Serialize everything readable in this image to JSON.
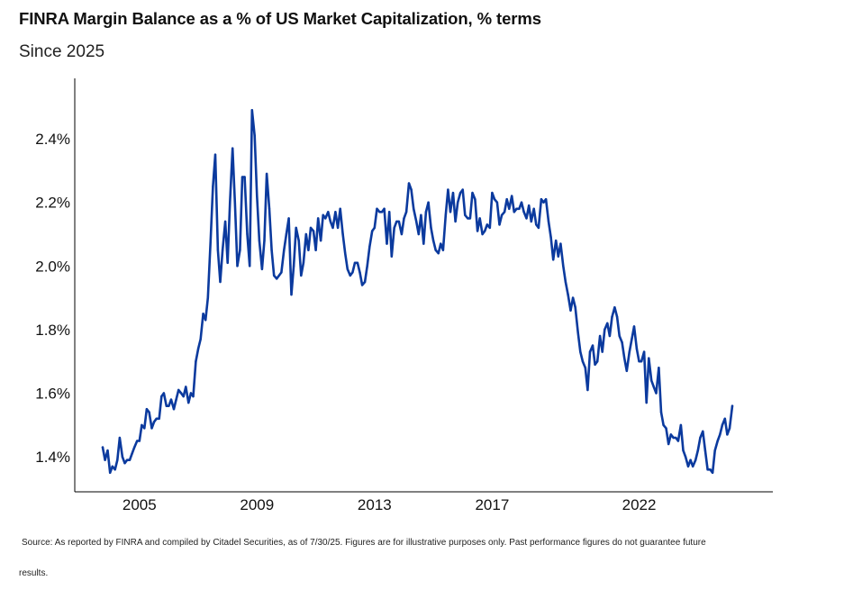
{
  "header": {
    "title": "FINRA Margin Balance as a % of US Market Capitalization, % terms",
    "subtitle": "Since 2025"
  },
  "footer": {
    "source_line1": "Source: As reported by FINRA and compiled by Citadel Securities, as of 7/30/25. Figures are for illustrative purposes only. Past performance figures do not guarantee future",
    "source_line2": "results."
  },
  "colors": {
    "line": "#0b3a9e",
    "axis": "#000000",
    "text": "#111111"
  },
  "chart_data": {
    "type": "line",
    "title": "FINRA Margin Balance as a % of US Market Capitalization, % terms",
    "subtitle": "Since 2025",
    "xlabel": "",
    "ylabel": "",
    "xlim": [
      2002.8,
      2026.55
    ],
    "ylim": [
      1.29,
      2.59
    ],
    "grid": false,
    "legend": "none",
    "x_ticks": [
      2005,
      2009,
      2013,
      2017,
      2022
    ],
    "x_tick_labels": [
      "2005",
      "2009",
      "2013",
      "2017",
      "2022"
    ],
    "y_ticks": [
      1.4,
      1.6,
      1.8,
      2.0,
      2.2,
      2.4
    ],
    "y_tick_labels": [
      "1.4%",
      "1.6%",
      "1.8%",
      "2.0%",
      "2.2%",
      "2.4%"
    ],
    "series": [
      {
        "name": "",
        "color": "#0b3a9e",
        "points": [
          [
            2003.75,
            1.43
          ],
          [
            2003.83,
            1.39
          ],
          [
            2003.92,
            1.42
          ],
          [
            2004.0,
            1.35
          ],
          [
            2004.08,
            1.37
          ],
          [
            2004.17,
            1.36
          ],
          [
            2004.25,
            1.39
          ],
          [
            2004.33,
            1.46
          ],
          [
            2004.42,
            1.4
          ],
          [
            2004.5,
            1.38
          ],
          [
            2004.58,
            1.39
          ],
          [
            2004.67,
            1.39
          ],
          [
            2004.75,
            1.41
          ],
          [
            2004.83,
            1.43
          ],
          [
            2004.92,
            1.45
          ],
          [
            2005.0,
            1.45
          ],
          [
            2005.08,
            1.5
          ],
          [
            2005.17,
            1.49
          ],
          [
            2005.25,
            1.55
          ],
          [
            2005.33,
            1.54
          ],
          [
            2005.42,
            1.49
          ],
          [
            2005.5,
            1.51
          ],
          [
            2005.58,
            1.52
          ],
          [
            2005.67,
            1.52
          ],
          [
            2005.75,
            1.59
          ],
          [
            2005.83,
            1.6
          ],
          [
            2005.92,
            1.56
          ],
          [
            2006.0,
            1.56
          ],
          [
            2006.08,
            1.58
          ],
          [
            2006.17,
            1.55
          ],
          [
            2006.25,
            1.58
          ],
          [
            2006.33,
            1.61
          ],
          [
            2006.42,
            1.6
          ],
          [
            2006.5,
            1.59
          ],
          [
            2006.58,
            1.62
          ],
          [
            2006.67,
            1.57
          ],
          [
            2006.75,
            1.6
          ],
          [
            2006.83,
            1.59
          ],
          [
            2006.92,
            1.7
          ],
          [
            2007.0,
            1.74
          ],
          [
            2007.08,
            1.77
          ],
          [
            2007.17,
            1.85
          ],
          [
            2007.25,
            1.83
          ],
          [
            2007.33,
            1.9
          ],
          [
            2007.42,
            2.08
          ],
          [
            2007.5,
            2.25
          ],
          [
            2007.58,
            2.35
          ],
          [
            2007.67,
            2.05
          ],
          [
            2007.75,
            1.95
          ],
          [
            2007.83,
            2.05
          ],
          [
            2007.92,
            2.14
          ],
          [
            2008.0,
            2.01
          ],
          [
            2008.08,
            2.2
          ],
          [
            2008.17,
            2.37
          ],
          [
            2008.25,
            2.2
          ],
          [
            2008.33,
            2.0
          ],
          [
            2008.42,
            2.05
          ],
          [
            2008.5,
            2.28
          ],
          [
            2008.58,
            2.28
          ],
          [
            2008.67,
            2.1
          ],
          [
            2008.75,
            2.0
          ],
          [
            2008.83,
            2.49
          ],
          [
            2008.92,
            2.41
          ],
          [
            2009.0,
            2.22
          ],
          [
            2009.08,
            2.08
          ],
          [
            2009.17,
            1.99
          ],
          [
            2009.25,
            2.08
          ],
          [
            2009.33,
            2.29
          ],
          [
            2009.42,
            2.18
          ],
          [
            2009.5,
            2.05
          ],
          [
            2009.58,
            1.97
          ],
          [
            2009.67,
            1.96
          ],
          [
            2009.75,
            1.97
          ],
          [
            2009.83,
            1.98
          ],
          [
            2009.92,
            2.05
          ],
          [
            2010.0,
            2.1
          ],
          [
            2010.08,
            2.15
          ],
          [
            2010.17,
            1.91
          ],
          [
            2010.25,
            2.0
          ],
          [
            2010.33,
            2.12
          ],
          [
            2010.42,
            2.08
          ],
          [
            2010.5,
            1.97
          ],
          [
            2010.58,
            2.01
          ],
          [
            2010.67,
            2.1
          ],
          [
            2010.75,
            2.05
          ],
          [
            2010.83,
            2.12
          ],
          [
            2010.92,
            2.11
          ],
          [
            2011.0,
            2.05
          ],
          [
            2011.08,
            2.15
          ],
          [
            2011.17,
            2.08
          ],
          [
            2011.25,
            2.16
          ],
          [
            2011.33,
            2.15
          ],
          [
            2011.42,
            2.17
          ],
          [
            2011.5,
            2.14
          ],
          [
            2011.58,
            2.12
          ],
          [
            2011.67,
            2.17
          ],
          [
            2011.75,
            2.12
          ],
          [
            2011.83,
            2.18
          ],
          [
            2011.92,
            2.1
          ],
          [
            2012.0,
            2.04
          ],
          [
            2012.08,
            1.99
          ],
          [
            2012.17,
            1.97
          ],
          [
            2012.25,
            1.98
          ],
          [
            2012.33,
            2.01
          ],
          [
            2012.42,
            2.01
          ],
          [
            2012.5,
            1.98
          ],
          [
            2012.58,
            1.94
          ],
          [
            2012.67,
            1.95
          ],
          [
            2012.75,
            2.0
          ],
          [
            2012.83,
            2.06
          ],
          [
            2012.92,
            2.11
          ],
          [
            2013.0,
            2.12
          ],
          [
            2013.08,
            2.18
          ],
          [
            2013.17,
            2.17
          ],
          [
            2013.25,
            2.17
          ],
          [
            2013.33,
            2.18
          ],
          [
            2013.42,
            2.07
          ],
          [
            2013.5,
            2.17
          ],
          [
            2013.58,
            2.03
          ],
          [
            2013.67,
            2.12
          ],
          [
            2013.75,
            2.14
          ],
          [
            2013.83,
            2.14
          ],
          [
            2013.92,
            2.1
          ],
          [
            2014.0,
            2.15
          ],
          [
            2014.08,
            2.17
          ],
          [
            2014.17,
            2.26
          ],
          [
            2014.25,
            2.24
          ],
          [
            2014.33,
            2.18
          ],
          [
            2014.42,
            2.14
          ],
          [
            2014.5,
            2.1
          ],
          [
            2014.58,
            2.16
          ],
          [
            2014.67,
            2.07
          ],
          [
            2014.75,
            2.17
          ],
          [
            2014.83,
            2.2
          ],
          [
            2014.92,
            2.12
          ],
          [
            2015.0,
            2.08
          ],
          [
            2015.08,
            2.05
          ],
          [
            2015.17,
            2.04
          ],
          [
            2015.25,
            2.07
          ],
          [
            2015.33,
            2.05
          ],
          [
            2015.42,
            2.16
          ],
          [
            2015.5,
            2.24
          ],
          [
            2015.58,
            2.17
          ],
          [
            2015.67,
            2.23
          ],
          [
            2015.75,
            2.14
          ],
          [
            2015.83,
            2.2
          ],
          [
            2015.92,
            2.23
          ],
          [
            2016.0,
            2.24
          ],
          [
            2016.08,
            2.16
          ],
          [
            2016.17,
            2.15
          ],
          [
            2016.25,
            2.15
          ],
          [
            2016.33,
            2.23
          ],
          [
            2016.42,
            2.21
          ],
          [
            2016.5,
            2.11
          ],
          [
            2016.58,
            2.15
          ],
          [
            2016.67,
            2.1
          ],
          [
            2016.75,
            2.11
          ],
          [
            2016.83,
            2.13
          ],
          [
            2016.92,
            2.12
          ],
          [
            2017.0,
            2.23
          ],
          [
            2017.08,
            2.21
          ],
          [
            2017.17,
            2.2
          ],
          [
            2017.25,
            2.13
          ],
          [
            2017.33,
            2.16
          ],
          [
            2017.42,
            2.17
          ],
          [
            2017.5,
            2.21
          ],
          [
            2017.58,
            2.18
          ],
          [
            2017.67,
            2.22
          ],
          [
            2017.75,
            2.17
          ],
          [
            2017.83,
            2.18
          ],
          [
            2017.92,
            2.18
          ],
          [
            2018.0,
            2.2
          ],
          [
            2018.08,
            2.17
          ],
          [
            2018.17,
            2.15
          ],
          [
            2018.25,
            2.19
          ],
          [
            2018.33,
            2.14
          ],
          [
            2018.42,
            2.18
          ],
          [
            2018.5,
            2.13
          ],
          [
            2018.58,
            2.12
          ],
          [
            2018.67,
            2.21
          ],
          [
            2018.75,
            2.2
          ],
          [
            2018.83,
            2.21
          ],
          [
            2018.92,
            2.14
          ],
          [
            2019.0,
            2.09
          ],
          [
            2019.08,
            2.02
          ],
          [
            2019.17,
            2.08
          ],
          [
            2019.25,
            2.03
          ],
          [
            2019.33,
            2.07
          ],
          [
            2019.42,
            2.0
          ],
          [
            2019.5,
            1.95
          ],
          [
            2019.58,
            1.91
          ],
          [
            2019.67,
            1.86
          ],
          [
            2019.75,
            1.9
          ],
          [
            2019.83,
            1.87
          ],
          [
            2019.92,
            1.79
          ],
          [
            2020.0,
            1.73
          ],
          [
            2020.08,
            1.7
          ],
          [
            2020.17,
            1.68
          ],
          [
            2020.25,
            1.61
          ],
          [
            2020.33,
            1.73
          ],
          [
            2020.42,
            1.75
          ],
          [
            2020.5,
            1.69
          ],
          [
            2020.58,
            1.7
          ],
          [
            2020.67,
            1.78
          ],
          [
            2020.75,
            1.73
          ],
          [
            2020.83,
            1.8
          ],
          [
            2020.92,
            1.82
          ],
          [
            2021.0,
            1.78
          ],
          [
            2021.08,
            1.84
          ],
          [
            2021.17,
            1.87
          ],
          [
            2021.25,
            1.84
          ],
          [
            2021.33,
            1.78
          ],
          [
            2021.42,
            1.76
          ],
          [
            2021.5,
            1.71
          ],
          [
            2021.58,
            1.67
          ],
          [
            2021.67,
            1.73
          ],
          [
            2021.75,
            1.77
          ],
          [
            2021.83,
            1.81
          ],
          [
            2021.92,
            1.74
          ],
          [
            2022.0,
            1.7
          ],
          [
            2022.08,
            1.7
          ],
          [
            2022.17,
            1.73
          ],
          [
            2022.25,
            1.57
          ],
          [
            2022.33,
            1.71
          ],
          [
            2022.42,
            1.64
          ],
          [
            2022.5,
            1.62
          ],
          [
            2022.58,
            1.6
          ],
          [
            2022.67,
            1.68
          ],
          [
            2022.75,
            1.54
          ],
          [
            2022.83,
            1.5
          ],
          [
            2022.92,
            1.49
          ],
          [
            2023.0,
            1.44
          ],
          [
            2023.08,
            1.47
          ],
          [
            2023.17,
            1.46
          ],
          [
            2023.25,
            1.46
          ],
          [
            2023.33,
            1.45
          ],
          [
            2023.42,
            1.5
          ],
          [
            2023.5,
            1.42
          ],
          [
            2023.58,
            1.4
          ],
          [
            2023.67,
            1.37
          ],
          [
            2023.75,
            1.39
          ],
          [
            2023.83,
            1.37
          ],
          [
            2023.92,
            1.39
          ],
          [
            2024.0,
            1.42
          ],
          [
            2024.08,
            1.46
          ],
          [
            2024.17,
            1.48
          ],
          [
            2024.25,
            1.42
          ],
          [
            2024.33,
            1.36
          ],
          [
            2024.42,
            1.36
          ],
          [
            2024.5,
            1.35
          ],
          [
            2024.58,
            1.42
          ],
          [
            2024.67,
            1.45
          ],
          [
            2024.75,
            1.47
          ],
          [
            2024.83,
            1.5
          ],
          [
            2024.92,
            1.52
          ],
          [
            2025.0,
            1.47
          ],
          [
            2025.08,
            1.49
          ],
          [
            2025.17,
            1.56
          ]
        ]
      }
    ]
  }
}
